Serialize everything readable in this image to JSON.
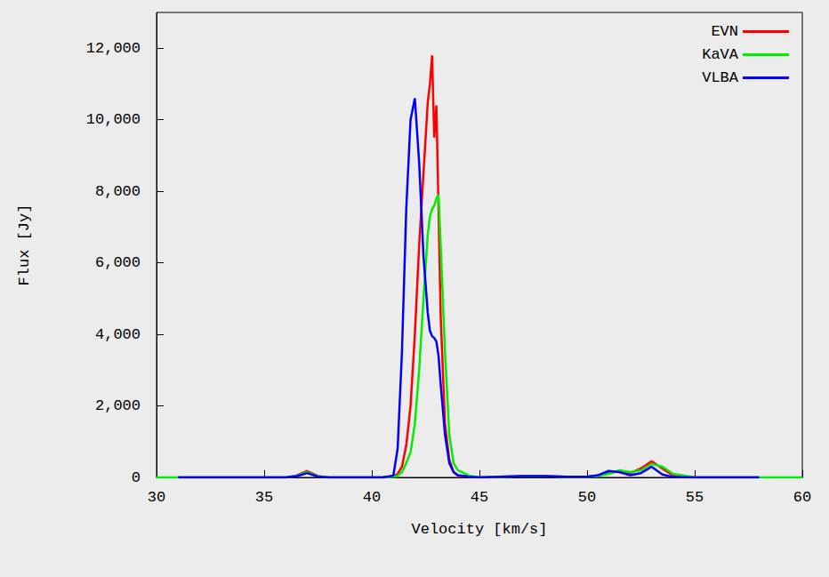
{
  "chart_data": {
    "type": "line",
    "x_label": "Velocity [km/s]",
    "y_label": "Flux [Jy]",
    "x": [
      30,
      31,
      32,
      34,
      36,
      36.5,
      37,
      37.5,
      38,
      40,
      40.5,
      41,
      41.2,
      41.4,
      41.6,
      41.8,
      42,
      42.2,
      42.4,
      42.6,
      42.7,
      42.8,
      42.9,
      43,
      43.1,
      43.2,
      43.4,
      43.6,
      43.8,
      44,
      44.5,
      45,
      46,
      47,
      48,
      49,
      50,
      50.5,
      51,
      51.5,
      52,
      52.5,
      53,
      53.5,
      54,
      55,
      56,
      58,
      60
    ],
    "series": [
      {
        "name": "EVN",
        "color": "#ff0000",
        "line_style": "solid",
        "marker": "none",
        "values": [
          null,
          0,
          0,
          0,
          0,
          50,
          180,
          40,
          0,
          0,
          0,
          30,
          100,
          300,
          900,
          2000,
          4000,
          6500,
          8500,
          10500,
          11000,
          11800,
          9500,
          10400,
          7500,
          4500,
          1500,
          500,
          150,
          50,
          20,
          0,
          20,
          40,
          40,
          20,
          20,
          50,
          120,
          180,
          120,
          250,
          450,
          250,
          50,
          0,
          0,
          0,
          null
        ]
      },
      {
        "name": "KaVA",
        "color": "#00ee00",
        "line_style": "solid",
        "marker": "none",
        "values": [
          0,
          0,
          0,
          0,
          0,
          40,
          150,
          30,
          0,
          0,
          0,
          20,
          50,
          150,
          400,
          700,
          1500,
          3000,
          5000,
          6800,
          7300,
          7500,
          7600,
          7800,
          7900,
          6500,
          3500,
          1200,
          400,
          200,
          50,
          0,
          20,
          40,
          40,
          20,
          20,
          40,
          100,
          200,
          150,
          200,
          380,
          300,
          100,
          0,
          0,
          0,
          0
        ]
      },
      {
        "name": "VLBA",
        "color": "#0000ff",
        "line_style": "solid",
        "marker": "none",
        "values": [
          null,
          0,
          0,
          0,
          0,
          30,
          120,
          20,
          0,
          0,
          0,
          50,
          800,
          3500,
          7500,
          10000,
          10600,
          8800,
          6200,
          4600,
          4100,
          3950,
          3900,
          3800,
          3400,
          2600,
          1200,
          400,
          150,
          60,
          20,
          0,
          20,
          40,
          40,
          20,
          20,
          60,
          180,
          150,
          60,
          120,
          300,
          80,
          10,
          0,
          0,
          0,
          null
        ]
      }
    ],
    "xlim": [
      30,
      60
    ],
    "xticks": [
      30,
      35,
      40,
      45,
      50,
      55,
      60
    ],
    "ylim": [
      0,
      13000
    ],
    "yticks": [
      0,
      2000,
      4000,
      6000,
      8000,
      10000,
      12000
    ],
    "grid": false,
    "legend": "upper right"
  }
}
